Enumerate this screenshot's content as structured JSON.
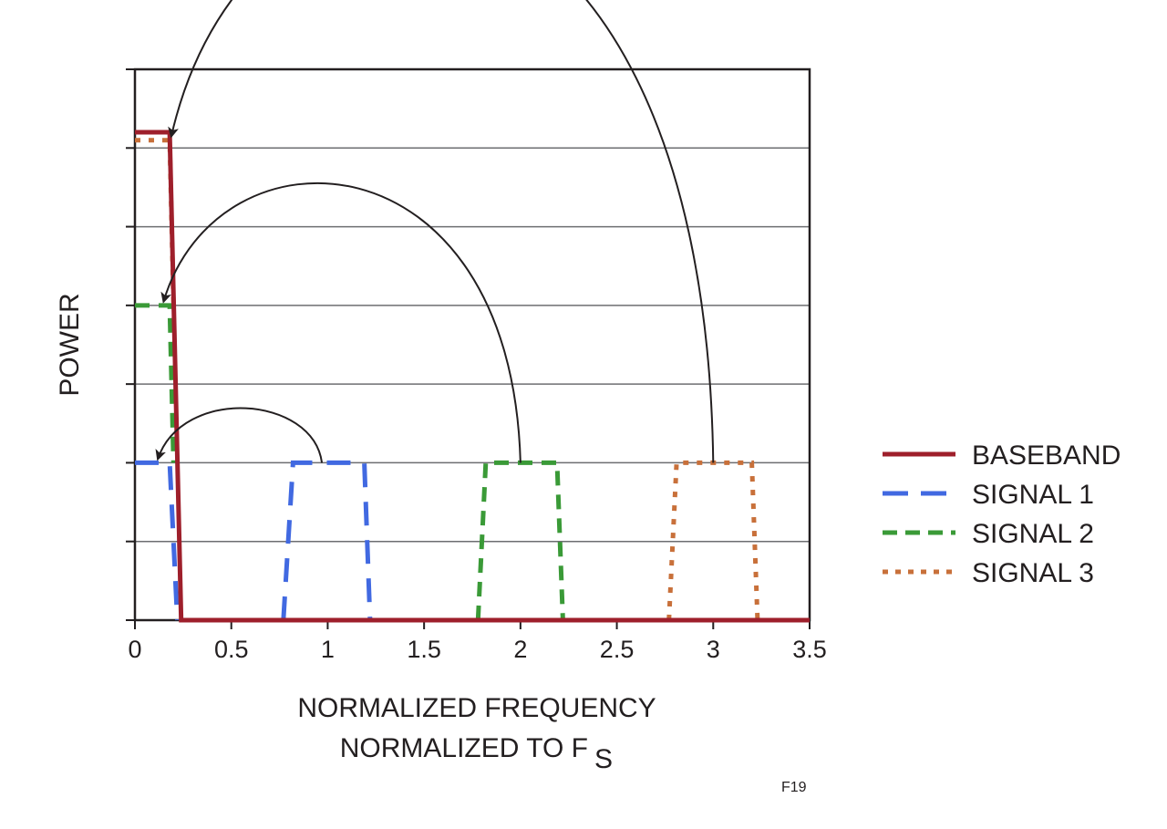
{
  "chart_data": {
    "type": "line",
    "title": "",
    "xlabel": "NORMALIZED FREQUENCY",
    "xlabel_line2": "NORMALIZED TO F",
    "xlabel_subscript": "S",
    "ylabel": "POWER",
    "xlim": [
      0,
      3.5
    ],
    "ylim": [
      0,
      7
    ],
    "x_ticks": [
      0,
      0.5,
      1,
      1.5,
      2,
      2.5,
      3,
      3.5
    ],
    "x_tick_labels": [
      "0",
      "0.5",
      "1",
      "1.5",
      "2",
      "2.5",
      "3",
      "3.5"
    ],
    "y_gridlines": [
      1,
      2,
      3,
      4,
      5,
      6
    ],
    "y_tick_labels_shown": false,
    "grid": "horizontal",
    "legend_position": "right",
    "series": [
      {
        "name": "BASEBAND",
        "color": "#9e1f2b",
        "style": "solid",
        "x": [
          0,
          0.18,
          0.24,
          3.5
        ],
        "y": [
          6.2,
          6.2,
          0,
          0
        ]
      },
      {
        "name": "SIGNAL 1",
        "color": "#4169e1",
        "style": "long-dash",
        "x": [
          0,
          0.18,
          0.22
        ],
        "y": [
          2,
          2,
          0
        ],
        "x2": [
          0.77,
          0.82,
          1.19,
          1.22
        ],
        "y2": [
          0,
          2,
          2,
          0
        ]
      },
      {
        "name": "SIGNAL 2",
        "color": "#3a9a37",
        "style": "dash",
        "x": [
          0,
          0.18,
          0.2
        ],
        "y": [
          4,
          4,
          2
        ],
        "x2": [
          1.78,
          1.82,
          2.19,
          2.22
        ],
        "y2": [
          0,
          2,
          2,
          0
        ]
      },
      {
        "name": "SIGNAL 3",
        "color": "#c8703a",
        "style": "dot",
        "x": [
          0,
          0.18,
          0.2
        ],
        "y": [
          6.1,
          6.1,
          4
        ],
        "x2": [
          2.77,
          2.81,
          3.2,
          3.23
        ],
        "y2": [
          0,
          2,
          2,
          0
        ]
      }
    ],
    "annotations": [
      {
        "type": "arrow",
        "from": [
          0.97,
          2
        ],
        "to": [
          0.09,
          2
        ]
      },
      {
        "type": "arrow",
        "from": [
          2.0,
          2
        ],
        "to": [
          0.12,
          4
        ]
      },
      {
        "type": "arrow",
        "from": [
          3.0,
          2
        ],
        "to": [
          0.16,
          6.1
        ]
      }
    ],
    "figure_id": "F19"
  }
}
